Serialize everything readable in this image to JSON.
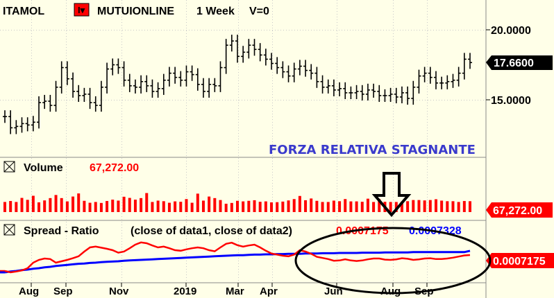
{
  "header": {
    "symbol": "ITAMOL",
    "name": "MUTUIONLINE",
    "period": "1 Week",
    "volume_label": "V=0"
  },
  "price_panel": {
    "ticks": [
      "20.0000",
      "15.0000"
    ],
    "last_value": "17.6600"
  },
  "annotation": {
    "text": "FORZA RELATIVA STAGNANTE",
    "color": "#3a3acc"
  },
  "volume_panel": {
    "title": "Volume",
    "value": "67,272.00",
    "last_value": "67,272.00"
  },
  "spread_panel": {
    "title": "Spread - Ratio",
    "formula": "(close of data1,  close of data2)",
    "value_red": "0.0007175",
    "value_blue": "0.0007328",
    "last_value": "0.0007175"
  },
  "x_axis": {
    "labels": [
      "Aug",
      "Sep",
      "Nov",
      "2019",
      "Mar",
      "Apr",
      "Jun",
      "Aug",
      "Sep"
    ]
  },
  "colors": {
    "background": "#ffffe8",
    "price_bars": "#000000",
    "volume": "#ff0000",
    "spread_line": "#ff0000",
    "ratio_line": "#0000ff",
    "grid": "#c8c8c8"
  },
  "chart_data": [
    {
      "type": "bar",
      "title": "",
      "series": [
        {
          "closes": [
            13.8,
            13.0,
            13.1,
            13.3,
            13.2,
            13.4,
            14.8,
            14.9,
            14.6,
            15.9,
            17.3,
            16.5,
            15.6,
            15.3,
            15.4,
            14.8,
            14.6,
            15.9,
            17.2,
            17.5,
            17.3,
            16.4,
            16.0,
            15.9,
            16.3,
            16.0,
            15.6,
            15.8,
            16.4,
            16.9,
            16.6,
            16.4,
            17.0,
            16.8,
            16.1,
            15.6,
            16.1,
            16.0,
            17.3,
            18.9,
            19.2,
            18.1,
            18.4,
            18.9,
            18.6,
            18.2,
            17.9,
            17.6,
            17.3,
            17.0,
            16.7,
            17.2,
            17.4,
            17.1,
            16.9,
            16.3,
            15.9,
            16.0,
            15.7,
            15.8,
            15.5,
            15.5,
            15.6,
            15.4,
            15.7,
            15.6,
            15.3,
            15.3,
            15.4,
            15.2,
            15.5,
            15.1,
            15.9,
            16.7,
            16.9,
            16.6,
            16.2,
            16.2,
            16.3,
            16.4,
            16.9,
            17.9,
            17.66
          ]
        }
      ]
    },
    {
      "type": "bar",
      "title": "Volume",
      "values": [
        52,
        57,
        52,
        73,
        63,
        84,
        50,
        60,
        72,
        88,
        72,
        55,
        80,
        96,
        58,
        48,
        52,
        47,
        57,
        64,
        59,
        79,
        73,
        64,
        72,
        98,
        52,
        59,
        56,
        48,
        55,
        53,
        67,
        48,
        95,
        59,
        80,
        72,
        62,
        43,
        47,
        58,
        55,
        58,
        61,
        53,
        55,
        50,
        51,
        54,
        60,
        67,
        83,
        61,
        70,
        58,
        52,
        52,
        59,
        56,
        67,
        55,
        55,
        53,
        69,
        52,
        67,
        53,
        52,
        52,
        53,
        56,
        62,
        62,
        60,
        62,
        66,
        59,
        56,
        56,
        52,
        57,
        56
      ]
    },
    {
      "type": "line",
      "title": "Spread - Ratio",
      "series": [
        {
          "name": "close of data1",
          "values": [
            0.00066,
            0.000655,
            0.000658,
            0.000662,
            0.00067,
            0.00069,
            0.0007,
            0.000705,
            0.000703,
            0.00069,
            0.000695,
            0.0007,
            0.000706,
            0.000713,
            0.00073,
            0.000745,
            0.000748,
            0.000744,
            0.00074,
            0.000735,
            0.000726,
            0.00073,
            0.000742,
            0.000755,
            0.000763,
            0.00076,
            0.000752,
            0.000745,
            0.000748,
            0.000742,
            0.000735,
            0.000733,
            0.000738,
            0.000742,
            0.000745,
            0.000742,
            0.000735,
            0.000731,
            0.000745,
            0.000758,
            0.000762,
            0.000753,
            0.000748,
            0.000752,
            0.000755,
            0.000745,
            0.000733,
            0.000723,
            0.000719,
            0.000715,
            0.000713,
            0.000719,
            0.000735,
            0.00073,
            0.000722,
            0.000711,
            0.000707,
            0.000703,
            0.000697,
            0.000698,
            0.000702,
            0.000698,
            0.000696,
            0.000698,
            0.000702,
            0.000705,
            0.000705,
            0.000701,
            0.0007,
            0.000702,
            0.000706,
            0.000704,
            0.0007,
            0.000702,
            0.000705,
            0.000706,
            0.000703,
            0.000703,
            0.000705,
            0.000708,
            0.000712,
            0.000716,
            0.0007175
          ]
        },
        {
          "name": "close of data2",
          "values": [
            0.000655,
            0.000658,
            0.00066,
            0.000663,
            0.000665,
            0.000668,
            0.00067,
            0.000673,
            0.000675,
            0.000678,
            0.00068,
            0.000682,
            0.000684,
            0.000686,
            0.000687,
            0.000689,
            0.00069,
            0.000692,
            0.000693,
            0.000694,
            0.000695,
            0.000697,
            0.000698,
            0.000699,
            0.0007,
            0.000701,
            0.000702,
            0.000703,
            0.000704,
            0.000705,
            0.000706,
            0.000707,
            0.000708,
            0.000709,
            0.00071,
            0.000711,
            0.000712,
            0.000713,
            0.000714,
            0.000715,
            0.000716,
            0.000717,
            0.000717,
            0.000718,
            0.000719,
            0.000719,
            0.00072,
            0.00072,
            0.000721,
            0.000721,
            0.000722,
            0.000722,
            0.000722,
            0.000723,
            0.000723,
            0.000723,
            0.000724,
            0.000724,
            0.000724,
            0.000725,
            0.000725,
            0.000725,
            0.000725,
            0.000726,
            0.000726,
            0.000726,
            0.000726,
            0.000727,
            0.000727,
            0.000727,
            0.000727,
            0.000727,
            0.000728,
            0.000728,
            0.000728,
            0.000728,
            0.000728,
            0.000728,
            0.000728,
            0.000728,
            0.000728,
            0.000728,
            0.0007328
          ]
        }
      ]
    }
  ]
}
